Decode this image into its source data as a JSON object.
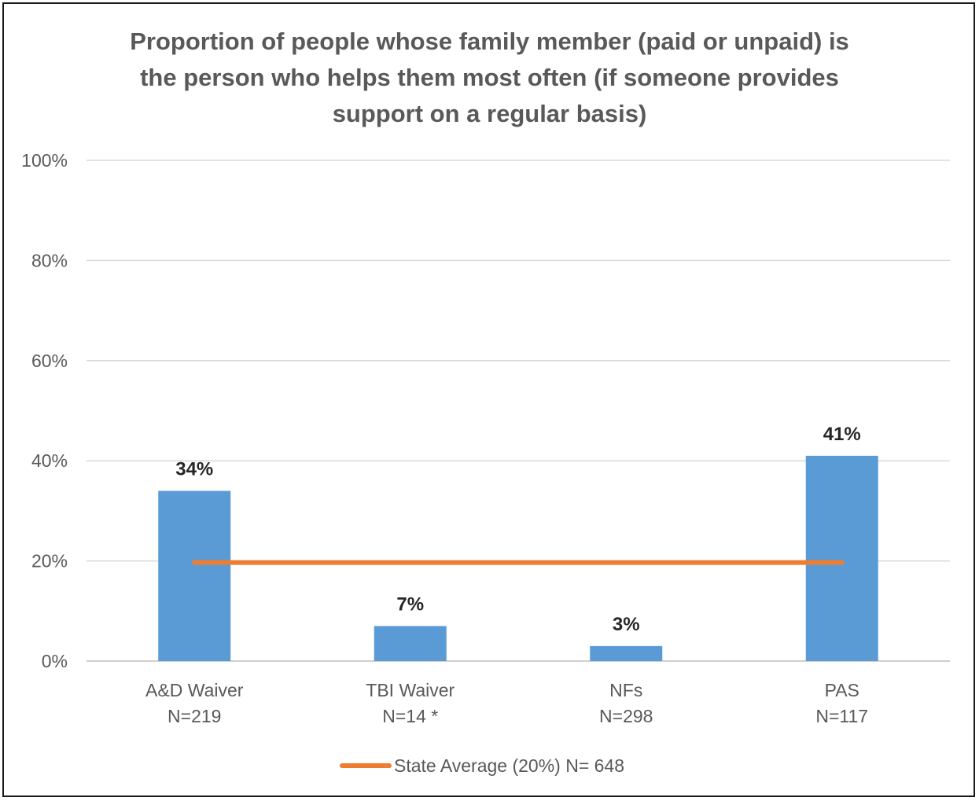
{
  "chart_data": {
    "type": "bar",
    "title_lines": [
      "Proportion of people whose family member (paid or unpaid) is",
      "the person who helps them most often (if someone provides",
      "support on a regular basis)"
    ],
    "categories": [
      "A&D Waiver",
      "TBI Waiver",
      "NFs",
      "PAS"
    ],
    "category_sublabels": [
      "N=219",
      "N=14 *",
      "N=298",
      "N=117"
    ],
    "values": [
      34,
      7,
      3,
      41
    ],
    "data_labels": [
      "34%",
      "7%",
      "3%",
      "41%"
    ],
    "ylim": [
      0,
      100
    ],
    "yticks": [
      0,
      20,
      40,
      60,
      80,
      100
    ],
    "ytick_labels": [
      "0%",
      "20%",
      "40%",
      "60%",
      "80%",
      "100%"
    ],
    "reference_line": {
      "name": "State Average (20%) N= 648",
      "value": 20
    },
    "legend": {
      "position": "bottom",
      "label": "State Average (20%) N= 648"
    },
    "grid": true,
    "colors": {
      "bar": "#5b9bd5",
      "line": "#ed7d31",
      "grid": "#d9d9d9",
      "text": "#595959"
    }
  }
}
